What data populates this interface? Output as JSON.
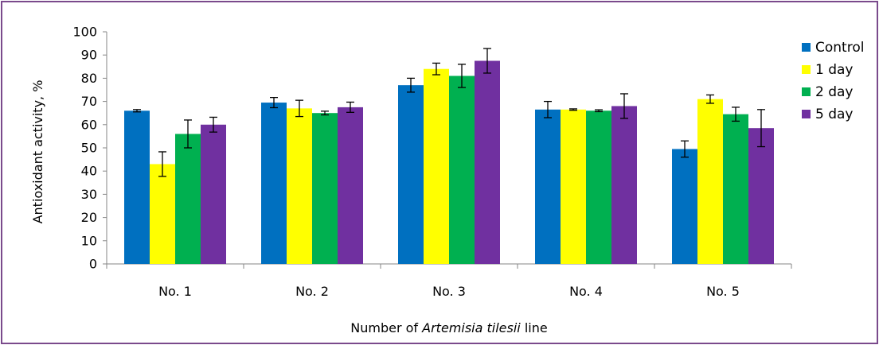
{
  "chart_data": {
    "type": "bar",
    "categories": [
      "No. 1",
      "No. 2",
      "No. 3",
      "No. 4",
      "No. 5"
    ],
    "series": [
      {
        "name": "Control",
        "color": "#0070c0",
        "values": [
          66,
          69.5,
          77,
          66.5,
          49.5
        ],
        "errors": [
          0.5,
          2.2,
          3,
          3.5,
          3.5
        ]
      },
      {
        "name": "1 day",
        "color": "#ffff00",
        "values": [
          43,
          67,
          84,
          66.5,
          71
        ],
        "errors": [
          5.3,
          3.5,
          2.5,
          0.3,
          1.8
        ]
      },
      {
        "name": "2 day",
        "color": "#00b050",
        "values": [
          56,
          65,
          81,
          66,
          64.5
        ],
        "errors": [
          6,
          0.8,
          5,
          0.4,
          3
        ]
      },
      {
        "name": "5 day",
        "color": "#7030a0",
        "values": [
          60,
          67.5,
          87.5,
          68,
          58.5
        ],
        "errors": [
          3.2,
          2.2,
          5.3,
          5.3,
          8
        ]
      }
    ],
    "xlabel_parts": [
      "Number of ",
      "Artemisia tilesii",
      " line"
    ],
    "ylabel": "Antioxidant activity, %",
    "ylim": [
      0,
      100
    ],
    "yticks": [
      0,
      10,
      20,
      30,
      40,
      50,
      60,
      70,
      80,
      90,
      100
    ],
    "grid": false,
    "legend_position": "right"
  }
}
